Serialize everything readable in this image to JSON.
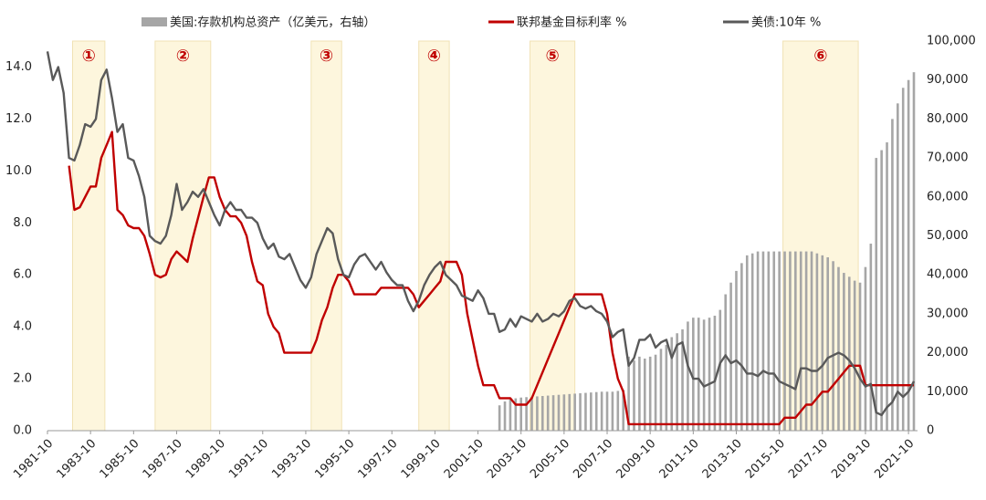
{
  "chart_data": {
    "type": "combo",
    "categories": [
      "1981-10",
      null,
      null,
      null,
      null,
      null,
      null,
      null,
      "1983-10",
      null,
      null,
      null,
      null,
      null,
      null,
      null,
      "1985-10",
      null,
      null,
      null,
      null,
      null,
      null,
      null,
      "1987-10",
      null,
      null,
      null,
      null,
      null,
      null,
      null,
      "1989-10",
      null,
      null,
      null,
      null,
      null,
      null,
      null,
      "1991-10",
      null,
      null,
      null,
      null,
      null,
      null,
      null,
      "1993-10",
      null,
      null,
      null,
      null,
      null,
      null,
      null,
      "1995-10",
      null,
      null,
      null,
      null,
      null,
      null,
      null,
      "1997-10",
      null,
      null,
      null,
      null,
      null,
      null,
      null,
      "1999-10",
      null,
      null,
      null,
      null,
      null,
      null,
      null,
      "2001-10",
      null,
      null,
      null,
      null,
      null,
      null,
      null,
      "2003-10",
      null,
      null,
      null,
      null,
      null,
      null,
      null,
      "2005-10",
      null,
      null,
      null,
      null,
      null,
      null,
      null,
      "2007-10",
      null,
      null,
      null,
      null,
      null,
      null,
      null,
      "2009-10",
      null,
      null,
      null,
      null,
      null,
      null,
      null,
      "2011-10",
      null,
      null,
      null,
      null,
      null,
      null,
      null,
      "2013-10",
      null,
      null,
      null,
      null,
      null,
      null,
      null,
      "2015-10",
      null,
      null,
      null,
      null,
      null,
      null,
      null,
      "2017-10",
      null,
      null,
      null,
      null,
      null,
      null,
      null,
      "2019-10",
      null,
      null,
      null,
      null,
      null,
      null,
      null,
      "2021-10",
      null
    ],
    "series": [
      {
        "name": "美国:存款机构总资产（亿美元，右轴）",
        "type": "bar",
        "axis": "y2",
        "color": "#a6a6a6",
        "values": [
          null,
          null,
          null,
          null,
          null,
          null,
          null,
          null,
          null,
          null,
          null,
          null,
          null,
          null,
          null,
          null,
          null,
          null,
          null,
          null,
          null,
          null,
          null,
          null,
          null,
          null,
          null,
          null,
          null,
          null,
          null,
          null,
          null,
          null,
          null,
          null,
          null,
          null,
          null,
          null,
          null,
          null,
          null,
          null,
          null,
          null,
          null,
          null,
          null,
          null,
          null,
          null,
          null,
          null,
          null,
          null,
          null,
          null,
          null,
          null,
          null,
          null,
          null,
          null,
          null,
          null,
          null,
          null,
          null,
          null,
          null,
          null,
          null,
          null,
          null,
          null,
          null,
          null,
          null,
          null,
          null,
          null,
          null,
          null,
          6500,
          7500,
          8000,
          8300,
          8500,
          8600,
          8700,
          8800,
          8900,
          9000,
          9100,
          9200,
          9300,
          9400,
          9500,
          9600,
          9700,
          9800,
          9900,
          10000,
          10000,
          10000,
          10200,
          10500,
          19000,
          18000,
          19000,
          18500,
          19000,
          19500,
          21000,
          22000,
          24000,
          25000,
          26000,
          28000,
          29000,
          29000,
          28500,
          29000,
          29500,
          31000,
          35000,
          38000,
          41000,
          43000,
          45000,
          45500,
          46000,
          46000,
          46000,
          46000,
          46000,
          46000,
          46000,
          46000,
          46000,
          46000,
          46000,
          45500,
          45000,
          44500,
          43500,
          42000,
          40500,
          39500,
          38500,
          38000,
          42000,
          48000,
          70000,
          72000,
          74000,
          80000,
          84000,
          88000,
          90000,
          92000
        ]
      },
      {
        "name": "联邦基金目标利率 %",
        "type": "line",
        "color": "#c00000",
        "values": [
          null,
          null,
          null,
          null,
          10.2,
          8.5,
          8.6,
          9.0,
          9.4,
          9.4,
          10.5,
          11.0,
          11.5,
          8.5,
          8.3,
          7.9,
          7.8,
          7.8,
          7.5,
          6.8,
          6.0,
          5.9,
          6.0,
          6.6,
          6.9,
          6.7,
          6.5,
          7.4,
          8.2,
          9.0,
          9.75,
          9.75,
          9.0,
          8.5,
          8.25,
          8.25,
          8.0,
          7.5,
          6.5,
          5.75,
          5.6,
          4.5,
          4.0,
          3.75,
          3,
          3,
          3,
          3,
          3,
          3,
          3.5,
          4.25,
          4.75,
          5.5,
          6,
          6,
          5.75,
          5.25,
          5.25,
          5.25,
          5.25,
          5.25,
          5.5,
          5.5,
          5.5,
          5.5,
          5.5,
          5.5,
          5.25,
          4.75,
          5,
          5.25,
          5.5,
          5.75,
          6.5,
          6.5,
          6.5,
          6,
          4.5,
          3.5,
          2.5,
          1.75,
          1.75,
          1.75,
          1.25,
          1.25,
          1.25,
          1,
          1,
          1,
          1.25,
          1.75,
          2.25,
          2.75,
          3.25,
          3.75,
          4.25,
          4.75,
          5.25,
          5.25,
          5.25,
          5.25,
          5.25,
          5.25,
          4.5,
          3,
          2,
          1.5,
          0.25,
          0.25,
          0.25,
          0.25,
          0.25,
          0.25,
          0.25,
          0.25,
          0.25,
          0.25,
          0.25,
          0.25,
          0.25,
          0.25,
          0.25,
          0.25,
          0.25,
          0.25,
          0.25,
          0.25,
          0.25,
          0.25,
          0.25,
          0.25,
          0.25,
          0.25,
          0.25,
          0.25,
          0.25,
          0.5,
          0.5,
          0.5,
          0.75,
          1,
          1,
          1.25,
          1.5,
          1.5,
          1.75,
          2,
          2.25,
          2.5,
          2.5,
          2.5,
          1.75,
          1.75,
          1.75,
          1.75,
          1.75,
          1.75,
          1.75,
          1.75,
          1.75,
          1.75
        ]
      },
      {
        "name": "美债:10年 %",
        "type": "line",
        "color": "#595959",
        "values": [
          14.6,
          13.5,
          14.0,
          13.0,
          10.5,
          10.4,
          11.0,
          11.8,
          11.7,
          12.0,
          13.5,
          13.9,
          12.8,
          11.5,
          11.8,
          10.5,
          10.4,
          9.8,
          9.0,
          7.5,
          7.3,
          7.2,
          7.5,
          8.3,
          9.5,
          8.5,
          8.8,
          9.2,
          9.0,
          9.3,
          8.8,
          8.3,
          7.9,
          8.5,
          8.8,
          8.5,
          8.5,
          8.2,
          8.2,
          8.0,
          7.4,
          7.0,
          7.2,
          6.7,
          6.6,
          6.8,
          6.3,
          5.8,
          5.5,
          5.9,
          6.8,
          7.3,
          7.8,
          7.6,
          6.6,
          6.0,
          5.9,
          6.4,
          6.7,
          6.8,
          6.5,
          6.2,
          6.5,
          6.1,
          5.8,
          5.6,
          5.6,
          5.0,
          4.6,
          5.0,
          5.6,
          6.0,
          6.3,
          6.5,
          6.0,
          5.8,
          5.6,
          5.2,
          5.1,
          5.0,
          5.4,
          5.1,
          4.5,
          4.5,
          3.8,
          3.9,
          4.3,
          4.0,
          4.4,
          4.3,
          4.2,
          4.5,
          4.2,
          4.3,
          4.5,
          4.4,
          4.6,
          5.0,
          5.1,
          4.8,
          4.7,
          4.8,
          4.6,
          4.5,
          4.2,
          3.6,
          3.8,
          3.9,
          2.5,
          2.8,
          3.5,
          3.5,
          3.7,
          3.2,
          3.4,
          3.5,
          2.8,
          3.3,
          3.4,
          2.5,
          2.0,
          2.0,
          1.7,
          1.8,
          1.9,
          2.6,
          2.9,
          2.6,
          2.7,
          2.5,
          2.2,
          2.2,
          2.1,
          2.3,
          2.2,
          2.2,
          1.9,
          1.8,
          1.7,
          1.6,
          2.4,
          2.4,
          2.3,
          2.3,
          2.5,
          2.8,
          2.9,
          3.0,
          2.9,
          2.7,
          2.4,
          2.0,
          1.7,
          1.8,
          0.7,
          0.6,
          0.9,
          1.1,
          1.5,
          1.3,
          1.5,
          1.9
        ]
      }
    ],
    "ylim": [
      0,
      15
    ],
    "yticks": [
      {
        "value": 0,
        "label": "0.0"
      },
      {
        "value": 2,
        "label": "2.0"
      },
      {
        "value": 4,
        "label": "4.0"
      },
      {
        "value": 6,
        "label": "6.0"
      },
      {
        "value": 8,
        "label": "8.0"
      },
      {
        "value": 10,
        "label": "10.0"
      },
      {
        "value": 12,
        "label": "12.0"
      },
      {
        "value": 14,
        "label": "14.0"
      }
    ],
    "y2lim": [
      0,
      100000
    ],
    "y2ticks": [
      0,
      {
        "value": 10000,
        "label": "10,000"
      },
      {
        "value": 20000,
        "label": "20,000"
      },
      {
        "value": 30000,
        "label": "30,000"
      },
      {
        "value": 40000,
        "label": "40,000"
      },
      {
        "value": 50000,
        "label": "50,000"
      },
      {
        "value": 60000,
        "label": "60,000"
      },
      {
        "value": 70000,
        "label": "70,000"
      },
      {
        "value": 80000,
        "label": "80,000"
      },
      {
        "value": 90000,
        "label": "90,000"
      },
      {
        "value": 100000,
        "label": "100,000"
      }
    ],
    "annotations": [
      {
        "label": "①",
        "from": "1982-12",
        "to": "1984-06"
      },
      {
        "label": "②",
        "from": "1986-10",
        "to": "1989-05"
      },
      {
        "label": "③",
        "from": "1994-01",
        "to": "1995-06"
      },
      {
        "label": "④",
        "from": "1999-01",
        "to": "2000-06"
      },
      {
        "label": "⑤",
        "from": "2004-03",
        "to": "2006-04"
      },
      {
        "label": "⑥",
        "from": "2015-12",
        "to": "2019-06"
      }
    ],
    "legend": "top",
    "grid": false
  }
}
